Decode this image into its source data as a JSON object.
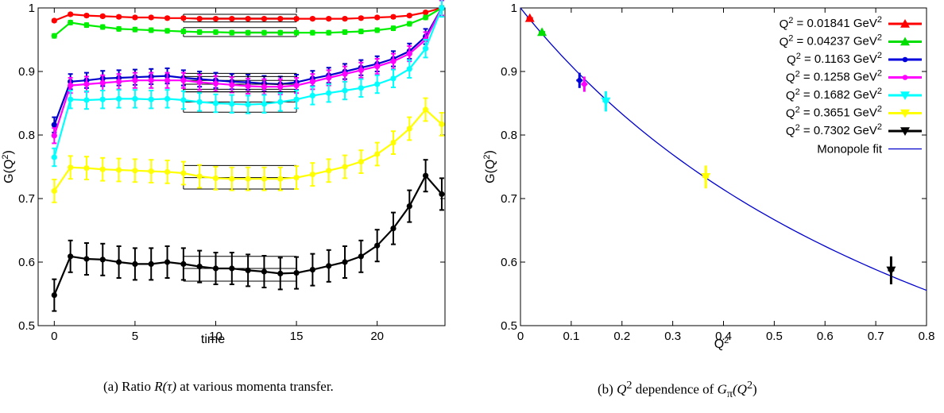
{
  "captions": {
    "a": {
      "prefix": "(a)  Ratio ",
      "math": "R(τ)",
      "suffix": " at various momenta transfer."
    },
    "b": {
      "prefix": "(b)  ",
      "math": "Q",
      "sup": "2",
      "suffix": " dependence of ",
      "math2": "G",
      "sub2": "π",
      "math3": "(Q",
      "sup3": "2",
      "end": ")"
    }
  },
  "chart_data": [
    {
      "type": "line",
      "xlabel": "time",
      "ylabel": "G(Q²)",
      "xlim": [
        -1,
        24.2
      ],
      "ylim": [
        0.5,
        1.0
      ],
      "xticks": [
        0,
        5,
        10,
        15,
        20
      ],
      "yticks": [
        0.5,
        0.6,
        0.7,
        0.8,
        0.9,
        1.0
      ],
      "ytick_labels": [
        "0.5",
        "0.6",
        "0.7",
        "0.8",
        "0.9",
        "1"
      ],
      "x": [
        0,
        1,
        2,
        3,
        4,
        5,
        6,
        7,
        8,
        9,
        10,
        11,
        12,
        13,
        14,
        15,
        16,
        17,
        18,
        19,
        20,
        21,
        22,
        23,
        24
      ],
      "fit_window": [
        8,
        15
      ],
      "series": [
        {
          "color": "#ff0000",
          "values": [
            0.98,
            0.99,
            0.988,
            0.987,
            0.986,
            0.985,
            0.985,
            0.984,
            0.984,
            0.983,
            0.983,
            0.983,
            0.983,
            0.983,
            0.983,
            0.983,
            0.983,
            0.983,
            0.983,
            0.984,
            0.985,
            0.986,
            0.988,
            0.993,
            1.0
          ],
          "err": 0.002,
          "fit": [
            0.984,
            0.978,
            0.99
          ]
        },
        {
          "color": "#00ee00",
          "values": [
            0.956,
            0.977,
            0.973,
            0.97,
            0.967,
            0.966,
            0.965,
            0.964,
            0.963,
            0.962,
            0.962,
            0.961,
            0.961,
            0.961,
            0.961,
            0.961,
            0.961,
            0.961,
            0.962,
            0.963,
            0.965,
            0.968,
            0.975,
            0.985,
            1.0
          ],
          "err": 0.003,
          "fit": [
            0.962,
            0.955,
            0.969
          ]
        },
        {
          "color": "#0000cc",
          "values": [
            0.816,
            0.884,
            0.886,
            0.889,
            0.89,
            0.891,
            0.892,
            0.893,
            0.89,
            0.888,
            0.886,
            0.884,
            0.883,
            0.881,
            0.88,
            0.883,
            0.889,
            0.894,
            0.9,
            0.906,
            0.912,
            0.92,
            0.932,
            0.955,
            1.0
          ],
          "err": 0.012,
          "fit": [
            0.886,
            0.872,
            0.897
          ]
        },
        {
          "color": "#ff00ff",
          "values": [
            0.799,
            0.878,
            0.88,
            0.882,
            0.884,
            0.886,
            0.886,
            0.886,
            0.886,
            0.883,
            0.881,
            0.879,
            0.877,
            0.876,
            0.876,
            0.878,
            0.884,
            0.89,
            0.896,
            0.902,
            0.908,
            0.916,
            0.928,
            0.95,
            1.0
          ],
          "err": 0.012,
          "fit": [
            0.88,
            0.868,
            0.892
          ]
        },
        {
          "color": "#00ffff",
          "values": [
            0.765,
            0.856,
            0.855,
            0.856,
            0.857,
            0.857,
            0.856,
            0.857,
            0.855,
            0.852,
            0.85,
            0.849,
            0.848,
            0.849,
            0.852,
            0.856,
            0.862,
            0.866,
            0.87,
            0.874,
            0.88,
            0.889,
            0.904,
            0.936,
            1.0
          ],
          "err": 0.014,
          "fit": [
            0.852,
            0.836,
            0.868
          ]
        },
        {
          "color": "#ffff00",
          "values": [
            0.712,
            0.749,
            0.748,
            0.746,
            0.745,
            0.744,
            0.743,
            0.742,
            0.74,
            0.735,
            0.732,
            0.731,
            0.731,
            0.731,
            0.731,
            0.733,
            0.738,
            0.744,
            0.75,
            0.758,
            0.77,
            0.788,
            0.81,
            0.84,
            0.817
          ],
          "err": 0.018,
          "fit": [
            0.733,
            0.715,
            0.752
          ]
        },
        {
          "color": "#000000",
          "values": [
            0.548,
            0.609,
            0.605,
            0.604,
            0.6,
            0.597,
            0.597,
            0.6,
            0.597,
            0.593,
            0.59,
            0.59,
            0.587,
            0.585,
            0.582,
            0.583,
            0.588,
            0.594,
            0.6,
            0.609,
            0.626,
            0.653,
            0.688,
            0.736,
            0.707
          ],
          "err": 0.025,
          "fit": [
            0.59,
            0.57,
            0.609
          ]
        }
      ]
    },
    {
      "type": "scatter",
      "xlabel": "Q²",
      "ylabel": "G(Q²)",
      "xlim": [
        0,
        0.8
      ],
      "ylim": [
        0.5,
        1.0
      ],
      "xticks": [
        0,
        0.1,
        0.2,
        0.3,
        0.4,
        0.5,
        0.6,
        0.7,
        0.8
      ],
      "xtick_labels": [
        "0",
        "0.1",
        "0.2",
        "0.3",
        "0.4",
        "0.5",
        "0.6",
        "0.7",
        "0.8"
      ],
      "yticks": [
        0.5,
        0.6,
        0.7,
        0.8,
        0.9,
        1.0
      ],
      "ytick_labels": [
        "0.5",
        "0.6",
        "0.7",
        "0.8",
        "0.9",
        "1"
      ],
      "series": [
        {
          "name": "Q² = 0.01841 GeV²",
          "color": "#ff0000",
          "marker": "triangle-up",
          "x": 0.01841,
          "y": 0.984,
          "err": 0.004
        },
        {
          "name": "Q² = 0.04237 GeV²",
          "color": "#00dd00",
          "marker": "triangle-up",
          "x": 0.04237,
          "y": 0.962,
          "err": 0.004
        },
        {
          "name": "Q² = 0.1163 GeV²",
          "color": "#0000dd",
          "marker": "circle",
          "x": 0.1163,
          "y": 0.886,
          "err": 0.012
        },
        {
          "name": "Q² = 0.1258 GeV²",
          "color": "#ff00ff",
          "marker": "circle",
          "x": 0.1258,
          "y": 0.88,
          "err": 0.012
        },
        {
          "name": "Q² = 0.1682 GeV²",
          "color": "#00ffff",
          "marker": "triangle-down",
          "x": 0.1682,
          "y": 0.853,
          "err": 0.016
        },
        {
          "name": "Q² = 0.3651 GeV²",
          "color": "#ffff00",
          "marker": "triangle-down",
          "x": 0.3651,
          "y": 0.734,
          "err": 0.018
        },
        {
          "name": "Q² = 0.7302 GeV²",
          "color": "#000000",
          "marker": "triangle-down",
          "x": 0.7302,
          "y": 0.587,
          "err": 0.022
        }
      ],
      "fit": {
        "name": "Monopole fit",
        "color": "#0000cc",
        "form": "monopole",
        "x": [
          0,
          0.8
        ],
        "y_at_0": 1.0,
        "mass_sq": 1.0
      }
    }
  ]
}
